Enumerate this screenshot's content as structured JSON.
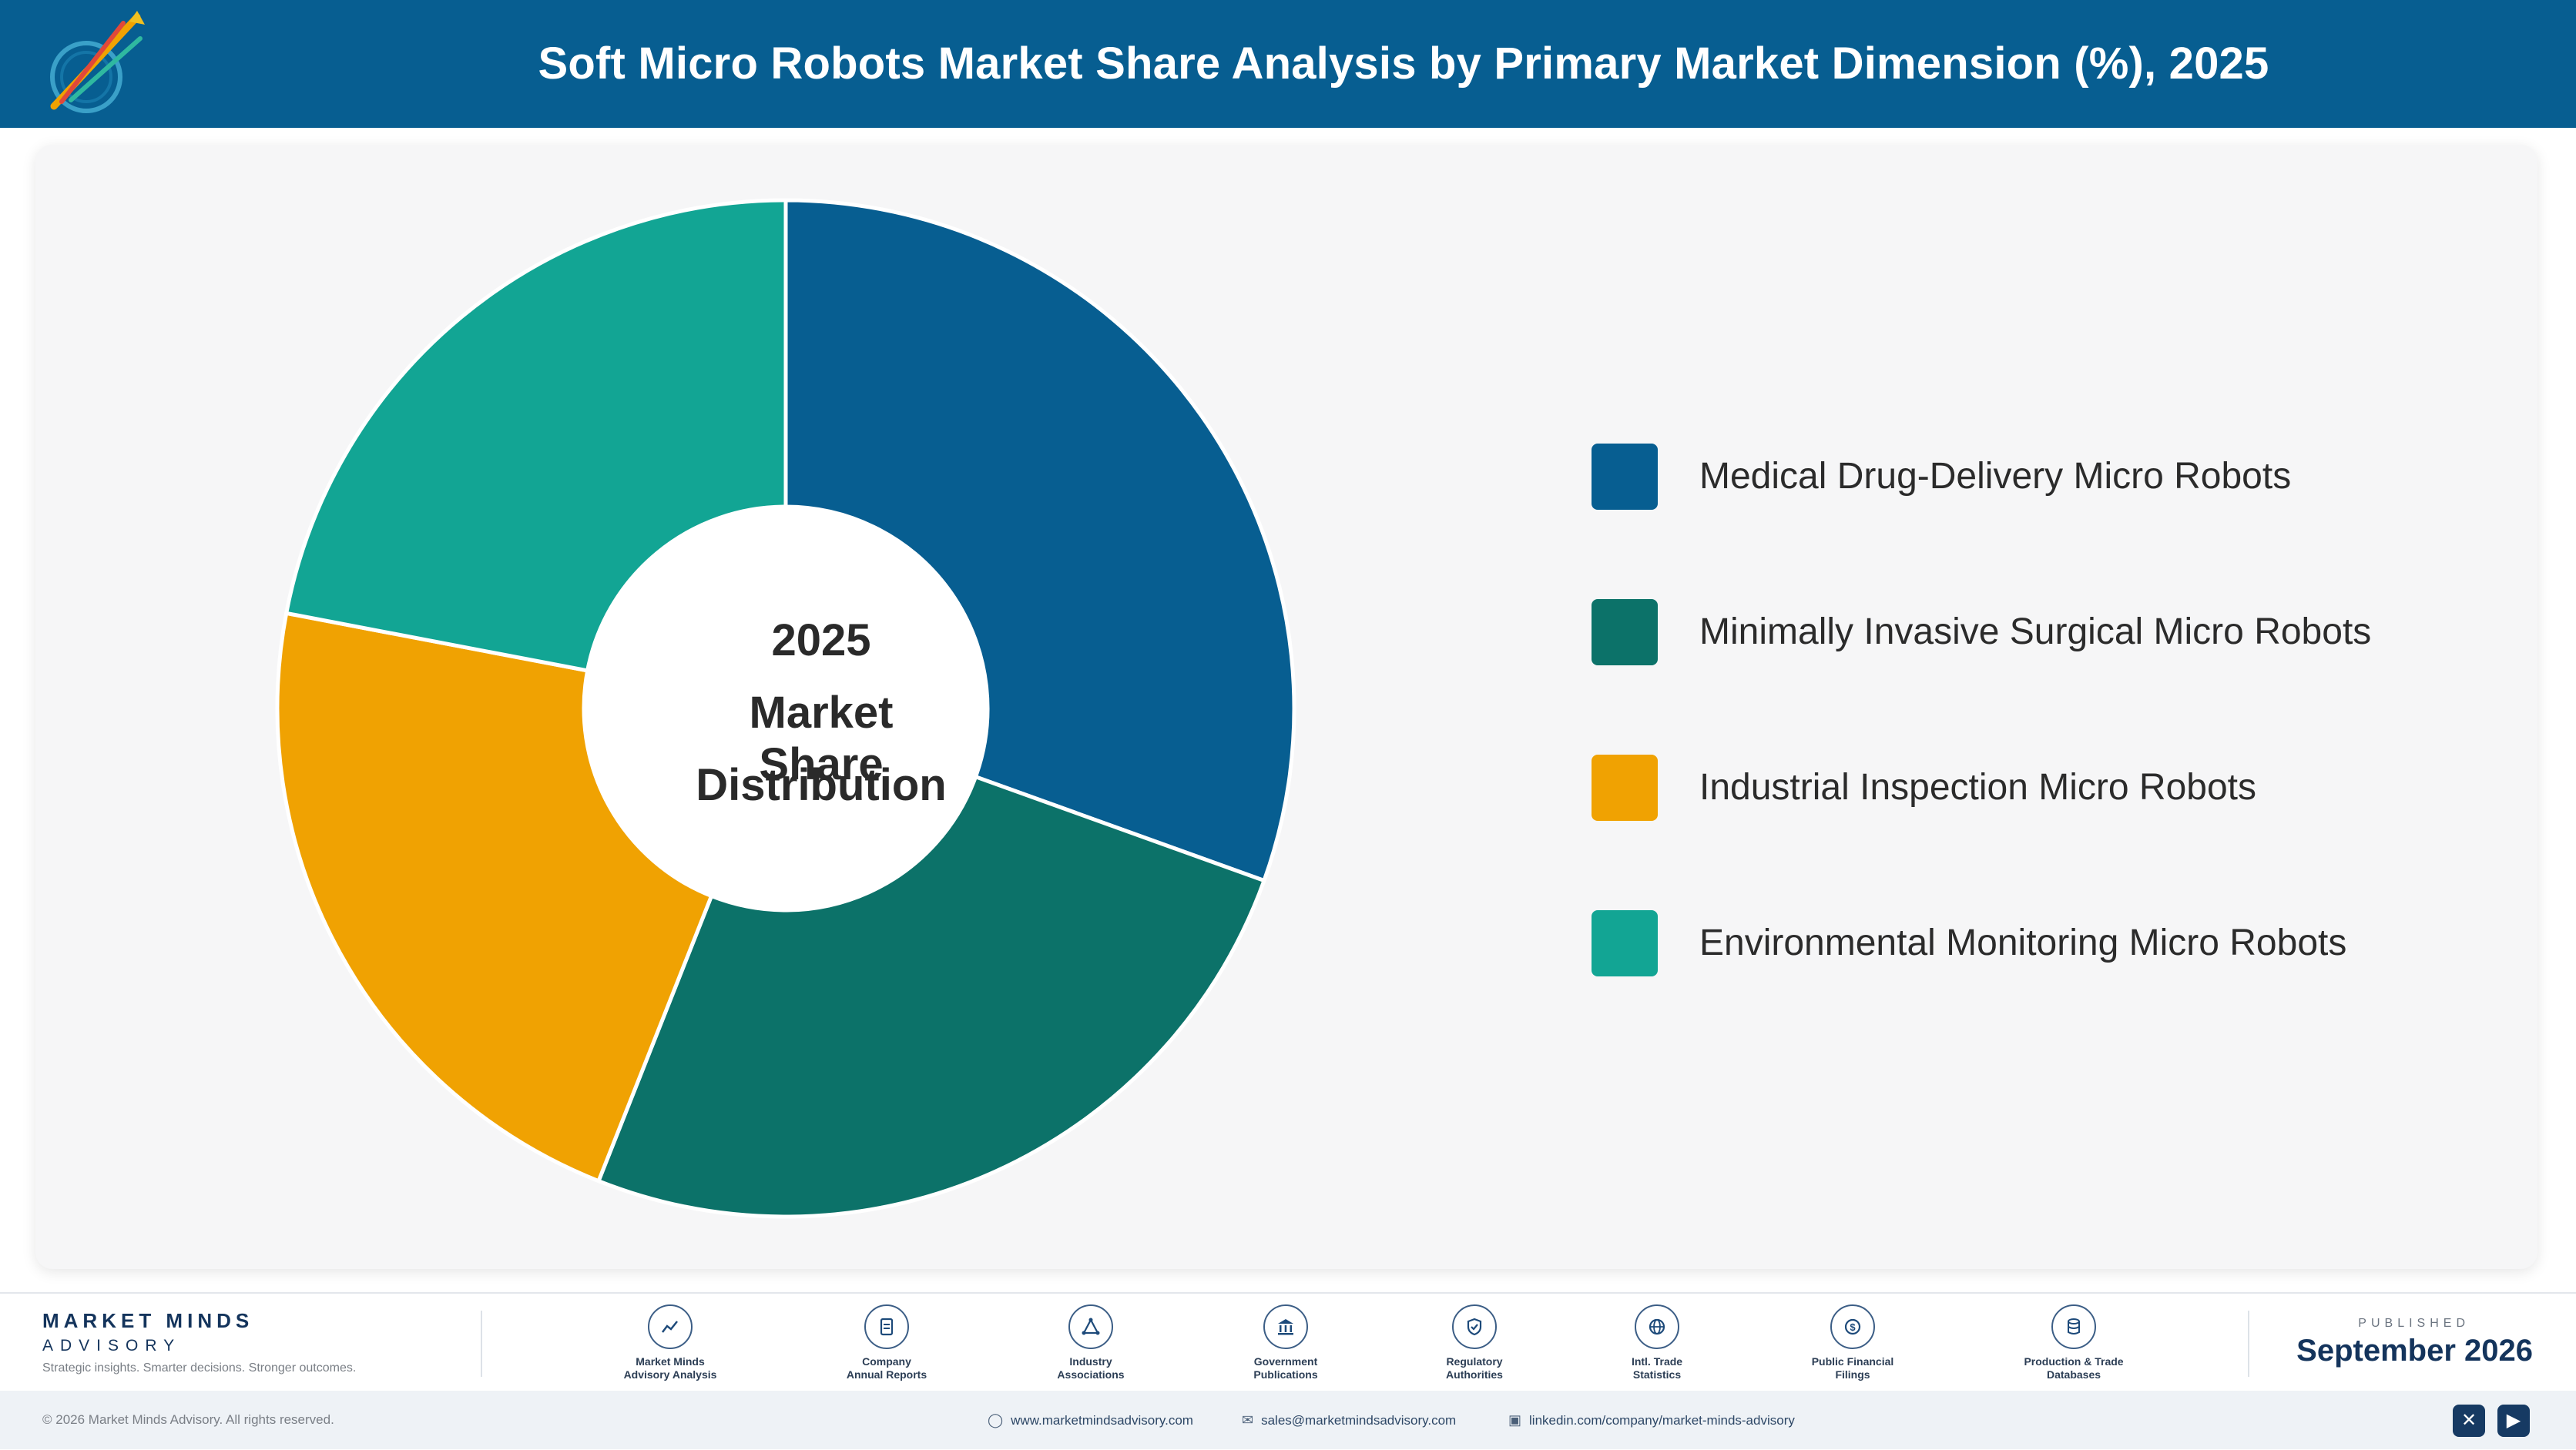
{
  "header": {
    "title": "Soft Micro Robots Market Share Analysis by Primary Market Dimension (%), 2025"
  },
  "chart_data": {
    "type": "pie",
    "title": "Soft Micro Robots Market Share Analysis by Primary Market Dimension (%), 2025",
    "center_label": [
      "2025",
      "Market Share",
      "Distribution"
    ],
    "categories": [
      "Medical Drug-Delivery Micro Robots",
      "Minimally Invasive Surgical Micro Robots",
      "Industrial Inspection Micro Robots",
      "Environmental Monitoring Micro Robots"
    ],
    "values": [
      30.5,
      25.5,
      22.0,
      22.0
    ],
    "colors": [
      "#075e91",
      "#0c7269",
      "#f0a202",
      "#12a594"
    ],
    "legend_position": "right"
  },
  "footer": {
    "brand_name": "MARKET MINDS",
    "brand_sub": "ADVISORY",
    "tagline": "Strategic insights. Smarter decisions. Stronger outcomes.",
    "sources": [
      {
        "line1": "Market Minds",
        "line2": "Advisory Analysis",
        "icon": "chart-line-icon"
      },
      {
        "line1": "Company",
        "line2": "Annual Reports",
        "icon": "document-icon"
      },
      {
        "line1": "Industry",
        "line2": "Associations",
        "icon": "network-icon"
      },
      {
        "line1": "Government",
        "line2": "Publications",
        "icon": "government-building-icon"
      },
      {
        "line1": "Regulatory",
        "line2": "Authorities",
        "icon": "shield-check-icon"
      },
      {
        "line1": "Intl. Trade",
        "line2": "Statistics",
        "icon": "globe-icon"
      },
      {
        "line1": "Public Financial",
        "line2": "Filings",
        "icon": "dollar-coin-icon"
      },
      {
        "line1": "Production & Trade",
        "line2": "Databases",
        "icon": "database-icon"
      }
    ],
    "published_caption": "PUBLISHED",
    "published_date": "September 2026"
  },
  "bottom_bar": {
    "copyright": "© 2026 Market Minds Advisory. All rights reserved.",
    "website": "www.marketmindsadvisory.com",
    "email": "sales@marketmindsadvisory.com",
    "linkedin": "linkedin.com/company/market-minds-advisory"
  }
}
